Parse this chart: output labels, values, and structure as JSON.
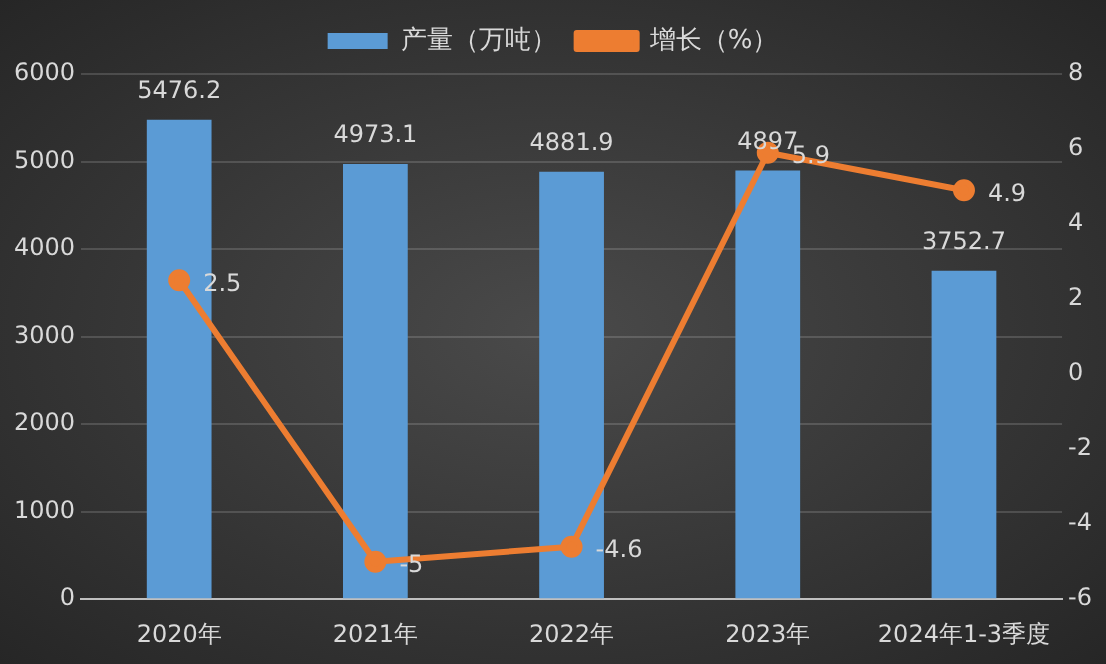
{
  "chart_data": {
    "type": "bar",
    "categories": [
      "2020年",
      "2021年",
      "2022年",
      "2023年",
      "2024年1-3季度"
    ],
    "series": [
      {
        "name": "产量（万吨）",
        "color": "#5b9bd5",
        "values": [
          5476.2,
          4973.1,
          4881.9,
          4897,
          3752.7
        ]
      },
      {
        "name": "增长（%）",
        "type": "line",
        "axis": "y2",
        "color": "#ed7d31",
        "values": [
          2.5,
          -5,
          -4.6,
          5.9,
          4.9
        ]
      }
    ],
    "ylim": [
      0,
      6000
    ],
    "yticks": [
      0,
      1000,
      2000,
      3000,
      4000,
      5000,
      6000
    ],
    "y2lim": [
      -6,
      8
    ],
    "y2ticks": [
      -6,
      -4,
      -2,
      0,
      2,
      4,
      6,
      8
    ],
    "grid": "y",
    "legend": "top",
    "marker": "circle",
    "data_labels": true
  }
}
